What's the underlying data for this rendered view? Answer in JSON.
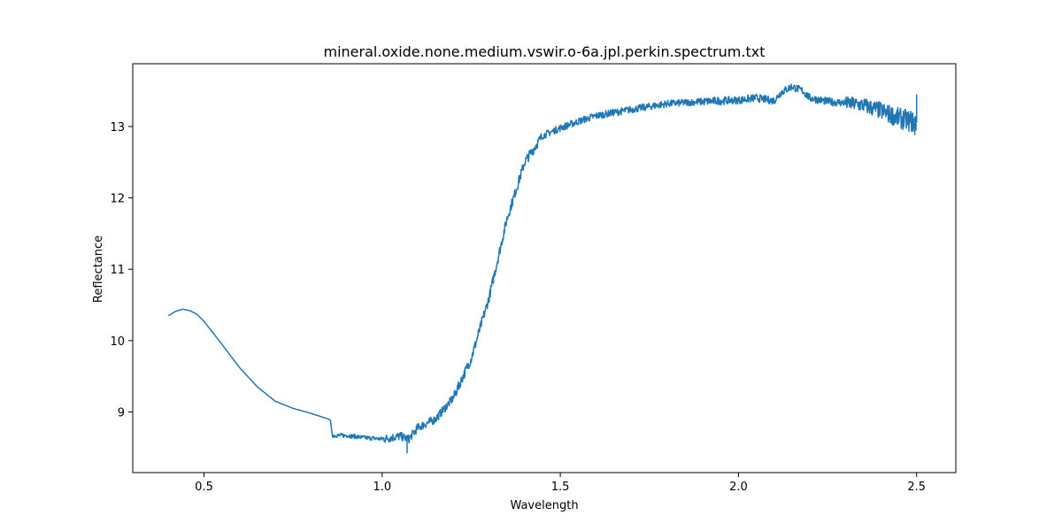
{
  "chart_data": {
    "type": "line",
    "title": "mineral.oxide.none.medium.vswir.o-6a.jpl.perkin.spectrum.txt",
    "xlabel": "Wavelength",
    "ylabel": "Reflectance",
    "xlim": [
      0.3,
      2.61
    ],
    "ylim": [
      8.15,
      13.88
    ],
    "xticks": [
      0.5,
      1.0,
      1.5,
      2.0,
      2.5
    ],
    "xtick_labels": [
      "0.5",
      "1.0",
      "1.5",
      "2.0",
      "2.5"
    ],
    "yticks": [
      9,
      10,
      11,
      12,
      13
    ],
    "ytick_labels": [
      "9",
      "10",
      "11",
      "12",
      "13"
    ],
    "grid": false,
    "legend": false,
    "series": [
      {
        "color": "#1f77b4",
        "x": [
          0.4,
          0.42,
          0.44,
          0.46,
          0.48,
          0.5,
          0.55,
          0.6,
          0.65,
          0.7,
          0.75,
          0.8,
          0.85,
          0.855,
          0.86,
          0.9,
          0.95,
          1.0,
          1.05,
          1.075,
          1.1,
          1.15,
          1.2,
          1.25,
          1.3,
          1.35,
          1.4,
          1.45,
          1.5,
          1.55,
          1.6,
          1.7,
          1.8,
          1.9,
          2.0,
          2.05,
          2.1,
          2.12,
          2.15,
          2.18,
          2.2,
          2.25,
          2.3,
          2.35,
          2.4,
          2.45,
          2.5
        ],
        "y": [
          10.35,
          10.41,
          10.44,
          10.42,
          10.37,
          10.27,
          9.95,
          9.62,
          9.35,
          9.15,
          9.05,
          8.98,
          8.9,
          8.88,
          8.67,
          8.67,
          8.64,
          8.62,
          8.66,
          8.62,
          8.78,
          8.9,
          9.2,
          9.75,
          10.6,
          11.7,
          12.5,
          12.87,
          12.98,
          13.07,
          13.15,
          13.24,
          13.32,
          13.35,
          13.37,
          13.4,
          13.36,
          13.48,
          13.56,
          13.5,
          13.4,
          13.35,
          13.33,
          13.3,
          13.22,
          13.12,
          13.05
        ]
      }
    ]
  }
}
